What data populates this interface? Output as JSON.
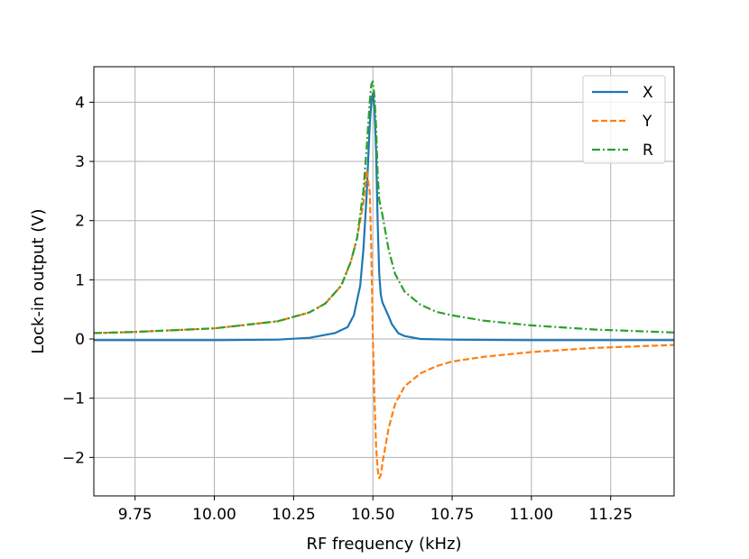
{
  "chart_data": {
    "type": "line",
    "title": "",
    "xlabel": "RF frequency (kHz)",
    "ylabel": "Lock-in output (V)",
    "xlim": [
      9.62,
      11.45
    ],
    "ylim": [
      -2.65,
      4.6
    ],
    "xticks": [
      9.75,
      10.0,
      10.25,
      10.5,
      10.75,
      11.0,
      11.25
    ],
    "xtick_labels": [
      "9.75",
      "10.00",
      "10.25",
      "10.50",
      "10.75",
      "11.00",
      "11.25"
    ],
    "yticks": [
      -2,
      -1,
      0,
      1,
      2,
      3,
      4
    ],
    "ytick_labels": [
      "−2",
      "−1",
      "0",
      "1",
      "2",
      "3",
      "4"
    ],
    "grid": true,
    "legend": "top-right",
    "series": [
      {
        "name": "X",
        "color": "#1f77b4",
        "style": "solid",
        "x": [
          9.62,
          9.75,
          10.0,
          10.2,
          10.3,
          10.38,
          10.42,
          10.44,
          10.46,
          10.47,
          10.48,
          10.485,
          10.49,
          10.495,
          10.5,
          10.505,
          10.51,
          10.515,
          10.52,
          10.525,
          10.53,
          10.54,
          10.55,
          10.56,
          10.58,
          10.6,
          10.65,
          10.75,
          11.0,
          11.45
        ],
        "y": [
          -0.02,
          -0.02,
          -0.02,
          -0.01,
          0.02,
          0.1,
          0.2,
          0.4,
          0.9,
          1.5,
          2.4,
          3.0,
          3.6,
          4.0,
          4.15,
          3.9,
          3.2,
          2.0,
          1.1,
          0.75,
          0.62,
          0.5,
          0.38,
          0.25,
          0.1,
          0.05,
          0.0,
          -0.01,
          -0.02,
          -0.02
        ]
      },
      {
        "name": "Y",
        "color": "#ff7f0e",
        "style": "dashed",
        "x": [
          9.62,
          9.75,
          10.0,
          10.2,
          10.3,
          10.35,
          10.4,
          10.43,
          10.45,
          10.47,
          10.48,
          10.49,
          10.495,
          10.5,
          10.505,
          10.51,
          10.515,
          10.52,
          10.525,
          10.53,
          10.54,
          10.55,
          10.57,
          10.6,
          10.65,
          10.7,
          10.75,
          10.85,
          11.0,
          11.2,
          11.45
        ],
        "y": [
          0.1,
          0.12,
          0.18,
          0.3,
          0.45,
          0.6,
          0.9,
          1.3,
          1.7,
          2.3,
          2.85,
          2.5,
          1.5,
          0.0,
          -1.0,
          -1.8,
          -2.2,
          -2.35,
          -2.3,
          -2.1,
          -1.8,
          -1.5,
          -1.1,
          -0.8,
          -0.58,
          -0.46,
          -0.38,
          -0.3,
          -0.22,
          -0.15,
          -0.1
        ]
      },
      {
        "name": "R",
        "color": "#2ca02c",
        "style": "dashdot",
        "x": [
          9.62,
          9.75,
          10.0,
          10.2,
          10.3,
          10.35,
          10.4,
          10.43,
          10.45,
          10.47,
          10.48,
          10.49,
          10.495,
          10.5,
          10.505,
          10.51,
          10.515,
          10.52,
          10.53,
          10.54,
          10.55,
          10.57,
          10.6,
          10.65,
          10.7,
          10.75,
          10.85,
          11.0,
          11.2,
          11.45
        ],
        "y": [
          0.1,
          0.12,
          0.18,
          0.3,
          0.45,
          0.6,
          0.9,
          1.3,
          1.7,
          2.5,
          3.2,
          4.0,
          4.3,
          4.35,
          4.1,
          3.6,
          2.8,
          2.35,
          2.1,
          1.8,
          1.5,
          1.1,
          0.8,
          0.58,
          0.46,
          0.4,
          0.31,
          0.23,
          0.16,
          0.11
        ]
      }
    ]
  }
}
